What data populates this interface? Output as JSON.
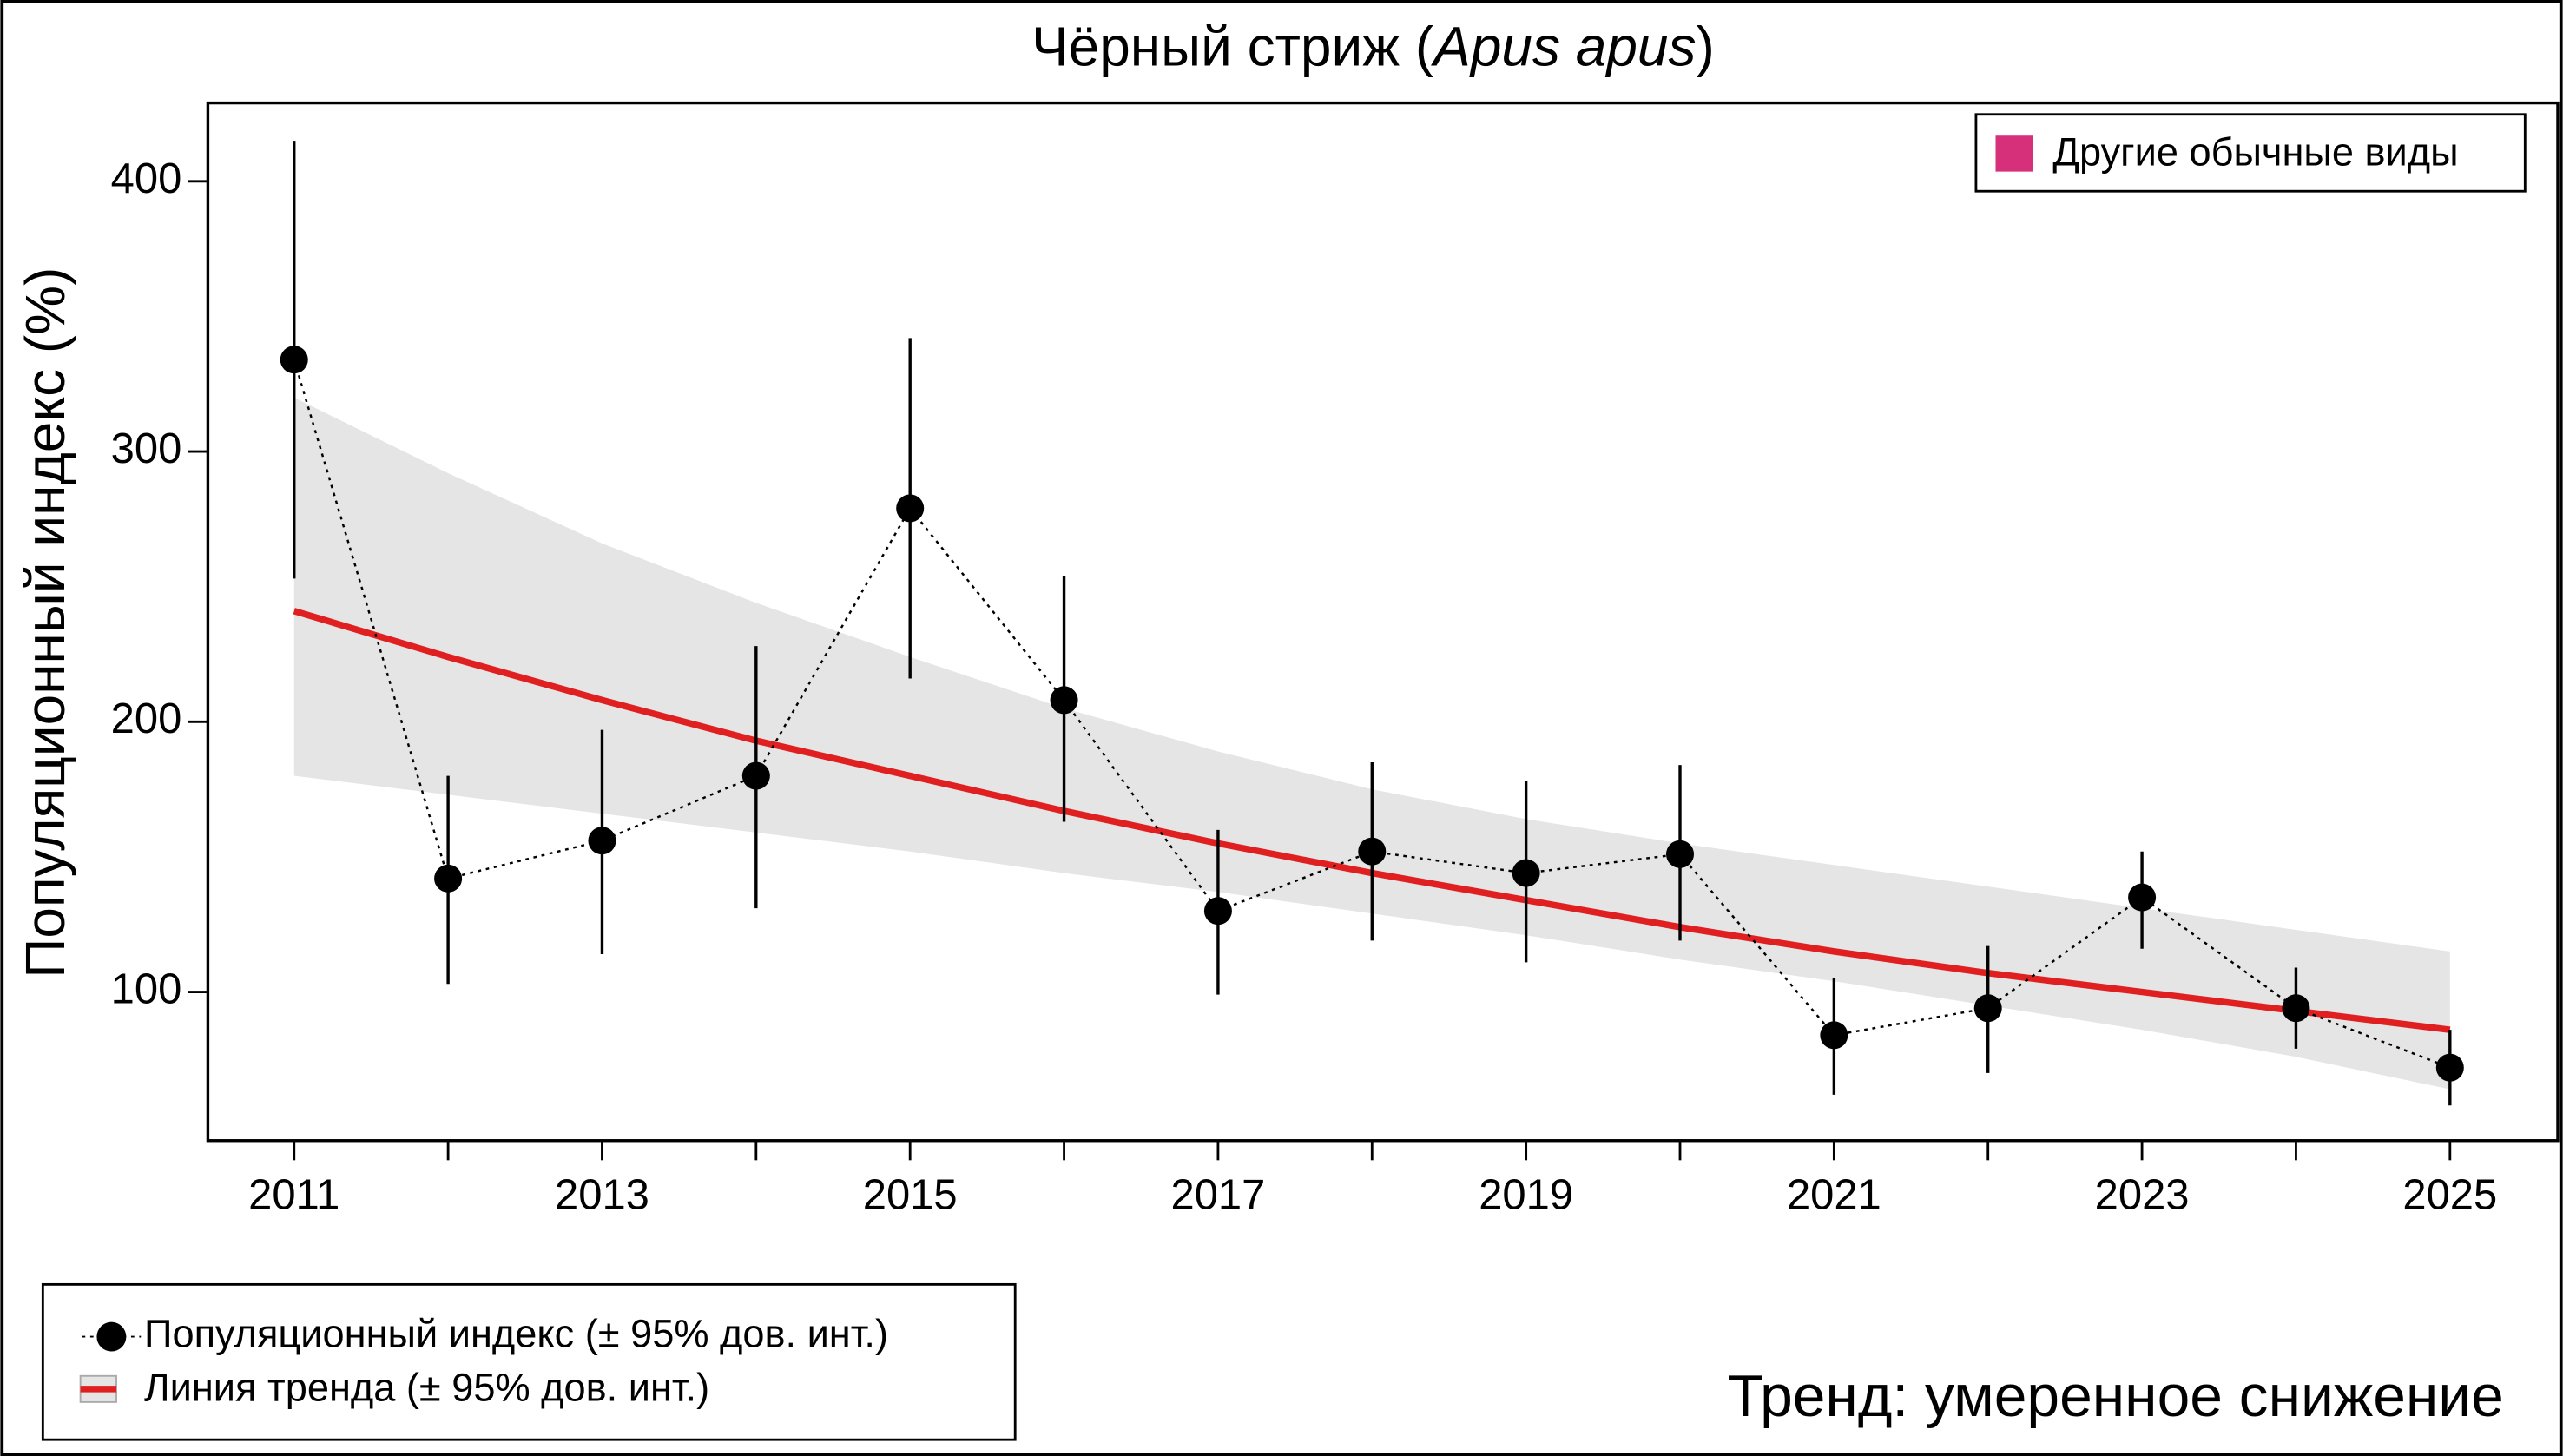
{
  "chart_data": {
    "type": "line",
    "title_parts": [
      "Чёрный стриж (",
      "Apus apus",
      ")"
    ],
    "ylabel": "Популяционный индекс (%)",
    "x": [
      2011,
      2012,
      2013,
      2014,
      2015,
      2016,
      2017,
      2018,
      2019,
      2020,
      2021,
      2022,
      2023,
      2024,
      2025
    ],
    "xlim": [
      2010.44,
      2025.7
    ],
    "xticks": [
      2011,
      2013,
      2015,
      2017,
      2019,
      2021,
      2023,
      2025
    ],
    "ylim": [
      45,
      429
    ],
    "yticks": [
      100,
      200,
      300,
      400
    ],
    "series": [
      {
        "name": "Популяционный индекс (± 95% дов. инт.)",
        "color": "#000000",
        "values": [
          334,
          142,
          156,
          180,
          279,
          208,
          130,
          152,
          144,
          151,
          84,
          94,
          135,
          94,
          72
        ],
        "lower": [
          253,
          103,
          114,
          131,
          216,
          163,
          99,
          119,
          111,
          119,
          62,
          70,
          116,
          79,
          58
        ],
        "upper": [
          415,
          180,
          197,
          228,
          342,
          254,
          160,
          185,
          178,
          184,
          105,
          117,
          152,
          109,
          86
        ]
      },
      {
        "name": "Линия тренда (± 95% дов. инт.)",
        "color": "#e02020",
        "band_color": "#e5e5e5",
        "values": [
          241,
          224,
          208,
          193,
          180,
          167,
          155,
          144,
          134,
          124,
          115,
          107,
          100,
          93,
          86
        ],
        "lower": [
          180,
          173,
          166,
          159,
          152,
          144,
          137,
          129,
          121,
          112,
          104,
          95,
          86,
          76,
          64
        ],
        "upper": [
          320,
          292,
          266,
          244,
          224,
          205,
          189,
          175,
          164,
          155,
          147,
          139,
          131,
          123,
          115
        ]
      }
    ],
    "other_legend": {
      "label": "Другие обычные виды",
      "color": "#d6307a"
    },
    "annotation": "Тренд: умеренное снижение",
    "annotation_color": "#c00000"
  }
}
